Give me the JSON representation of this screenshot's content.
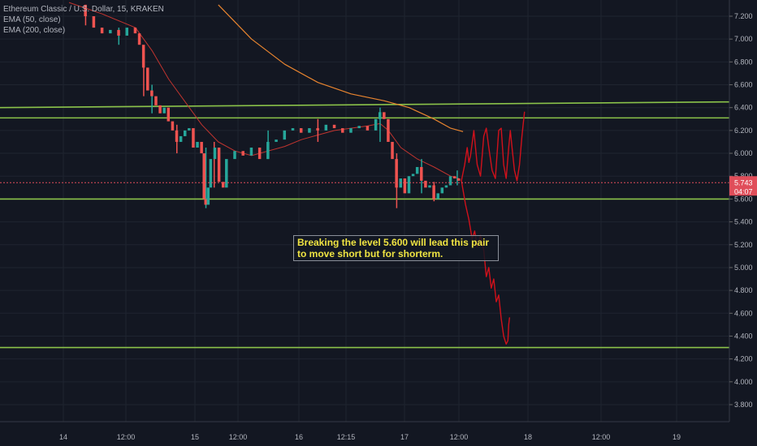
{
  "chart_data": {
    "type": "line",
    "symbol_title": "Ethereum Classic / U.S. Dollar, 15, KRAKEN",
    "indicators": [
      "EMA (50, close)",
      "EMA (200, close)"
    ],
    "y_axis": {
      "ticks": [
        7.2,
        7.0,
        6.8,
        6.6,
        6.4,
        6.2,
        6.0,
        5.8,
        5.6,
        5.4,
        5.2,
        5.0,
        4.8,
        4.6,
        4.4,
        4.2,
        4.0,
        3.8
      ],
      "tick_labels": [
        "7.200",
        "7.000",
        "6.800",
        "6.600",
        "6.400",
        "6.200",
        "6.000",
        "5.800",
        "5.600",
        "5.400",
        "5.200",
        "5.000",
        "4.800",
        "4.600",
        "4.400",
        "4.200",
        "4.000",
        "3.800"
      ],
      "range": [
        3.8,
        7.3
      ]
    },
    "x_axis": {
      "tick_labels": [
        "14",
        "12:00",
        "15",
        "12:00",
        "16",
        "12:15",
        "17",
        "12:00",
        "18",
        "12:00",
        "19"
      ],
      "range_bars": [
        0,
        700
      ]
    },
    "current_price": {
      "label": "5.743",
      "value": 5.743
    },
    "countdown": "04:07",
    "horizontal_levels": [
      {
        "start": 6.4,
        "end": 6.45
      },
      {
        "start": 6.31,
        "end": 6.31
      },
      {
        "start": 5.6,
        "end": 5.6
      },
      {
        "start": 4.3,
        "end": 4.3
      }
    ],
    "annotation": {
      "line1": "Breaking the level 5.600 will lead this pair",
      "line2": "to move short but for shorterm."
    },
    "price_path": [
      [
        0,
        7.3
      ],
      [
        20,
        7.2
      ],
      [
        30,
        7.1
      ],
      [
        40,
        7.05
      ],
      [
        50,
        7.08
      ],
      [
        60,
        7.03
      ],
      [
        70,
        7.1
      ],
      [
        80,
        7.05
      ],
      [
        85,
        6.95
      ],
      [
        90,
        6.75
      ],
      [
        95,
        6.55
      ],
      [
        100,
        6.5
      ],
      [
        105,
        6.42
      ],
      [
        110,
        6.35
      ],
      [
        115,
        6.4
      ],
      [
        120,
        6.28
      ],
      [
        125,
        6.2
      ],
      [
        130,
        6.1
      ],
      [
        135,
        6.15
      ],
      [
        140,
        6.2
      ],
      [
        145,
        6.22
      ],
      [
        150,
        6.05
      ],
      [
        155,
        6.1
      ],
      [
        160,
        6.0
      ],
      [
        163,
        5.6
      ],
      [
        165,
        5.55
      ],
      [
        168,
        5.7
      ],
      [
        171,
        5.95
      ],
      [
        176,
        6.05
      ],
      [
        181,
        5.75
      ],
      [
        186,
        5.7
      ],
      [
        190,
        5.95
      ],
      [
        200,
        6.02
      ],
      [
        210,
        5.98
      ],
      [
        220,
        6.05
      ],
      [
        230,
        5.95
      ],
      [
        240,
        6.1
      ],
      [
        250,
        6.12
      ],
      [
        260,
        6.2
      ],
      [
        270,
        6.22
      ],
      [
        280,
        6.18
      ],
      [
        290,
        6.22
      ],
      [
        300,
        6.2
      ],
      [
        310,
        6.25
      ],
      [
        320,
        6.22
      ],
      [
        330,
        6.18
      ],
      [
        340,
        6.22
      ],
      [
        350,
        6.24
      ],
      [
        360,
        6.2
      ],
      [
        370,
        6.3
      ],
      [
        375,
        6.36
      ],
      [
        380,
        6.3
      ],
      [
        385,
        6.1
      ],
      [
        390,
        5.95
      ],
      [
        395,
        5.7
      ],
      [
        400,
        5.78
      ],
      [
        405,
        5.65
      ],
      [
        410,
        5.8
      ],
      [
        415,
        5.82
      ],
      [
        420,
        5.88
      ],
      [
        425,
        5.76
      ],
      [
        430,
        5.7
      ],
      [
        435,
        5.72
      ],
      [
        440,
        5.6
      ],
      [
        445,
        5.65
      ],
      [
        450,
        5.7
      ],
      [
        455,
        5.72
      ],
      [
        460,
        5.8
      ],
      [
        465,
        5.78
      ],
      [
        470,
        5.76
      ]
    ],
    "price_extremes": [
      [
        20,
        7.3,
        7.12
      ],
      [
        60,
        7.1,
        6.95
      ],
      [
        90,
        6.85,
        6.5
      ],
      [
        100,
        6.6,
        6.35
      ],
      [
        130,
        6.25,
        6.0
      ],
      [
        165,
        6.05,
        5.52
      ],
      [
        175,
        6.1,
        5.7
      ],
      [
        240,
        6.2,
        5.95
      ],
      [
        300,
        6.3,
        6.1
      ],
      [
        375,
        6.4,
        6.1
      ],
      [
        395,
        6.0,
        5.52
      ],
      [
        425,
        5.95,
        5.65
      ],
      [
        440,
        5.75,
        5.58
      ],
      [
        468,
        5.85,
        5.72
      ]
    ],
    "ema50": [
      [
        0,
        7.32
      ],
      [
        40,
        7.22
      ],
      [
        80,
        7.1
      ],
      [
        100,
        6.9
      ],
      [
        120,
        6.65
      ],
      [
        140,
        6.45
      ],
      [
        160,
        6.25
      ],
      [
        180,
        6.1
      ],
      [
        200,
        6.02
      ],
      [
        220,
        5.98
      ],
      [
        240,
        6.02
      ],
      [
        260,
        6.06
      ],
      [
        280,
        6.12
      ],
      [
        300,
        6.16
      ],
      [
        320,
        6.2
      ],
      [
        340,
        6.22
      ],
      [
        360,
        6.24
      ],
      [
        375,
        6.26
      ],
      [
        385,
        6.2
      ],
      [
        400,
        6.05
      ],
      [
        420,
        5.95
      ],
      [
        440,
        5.88
      ],
      [
        460,
        5.8
      ],
      [
        470,
        5.78
      ]
    ],
    "ema200": [
      [
        180,
        7.3
      ],
      [
        220,
        7.0
      ],
      [
        260,
        6.78
      ],
      [
        300,
        6.62
      ],
      [
        340,
        6.52
      ],
      [
        380,
        6.46
      ],
      [
        410,
        6.4
      ],
      [
        440,
        6.3
      ],
      [
        460,
        6.22
      ],
      [
        475,
        6.19
      ]
    ],
    "projection_up": [
      [
        473,
        5.76
      ],
      [
        477,
        5.9
      ],
      [
        480,
        6.05
      ],
      [
        482,
        5.92
      ],
      [
        484,
        5.98
      ],
      [
        488,
        6.2
      ],
      [
        492,
        5.9
      ],
      [
        496,
        5.8
      ],
      [
        500,
        6.15
      ],
      [
        503,
        6.22
      ],
      [
        506,
        6.05
      ],
      [
        510,
        5.85
      ],
      [
        514,
        5.78
      ],
      [
        518,
        6.2
      ],
      [
        521,
        6.22
      ],
      [
        524,
        5.9
      ],
      [
        527,
        5.78
      ],
      [
        530,
        6.05
      ],
      [
        532,
        6.2
      ],
      [
        534,
        6.05
      ],
      [
        537,
        5.85
      ],
      [
        540,
        5.76
      ],
      [
        543,
        5.9
      ],
      [
        546,
        6.15
      ],
      [
        549,
        6.36
      ]
    ],
    "projection_down": [
      [
        473,
        5.76
      ],
      [
        478,
        5.55
      ],
      [
        482,
        5.42
      ],
      [
        486,
        5.25
      ],
      [
        489,
        5.32
      ],
      [
        492,
        5.18
      ],
      [
        496,
        5.28
      ],
      [
        500,
        5.15
      ],
      [
        503,
        4.92
      ],
      [
        506,
        5.0
      ],
      [
        509,
        4.82
      ],
      [
        512,
        4.9
      ],
      [
        515,
        4.7
      ],
      [
        518,
        4.76
      ],
      [
        521,
        4.55
      ],
      [
        524,
        4.4
      ],
      [
        527,
        4.33
      ],
      [
        529,
        4.36
      ],
      [
        530,
        4.5
      ],
      [
        531,
        4.56
      ]
    ]
  }
}
